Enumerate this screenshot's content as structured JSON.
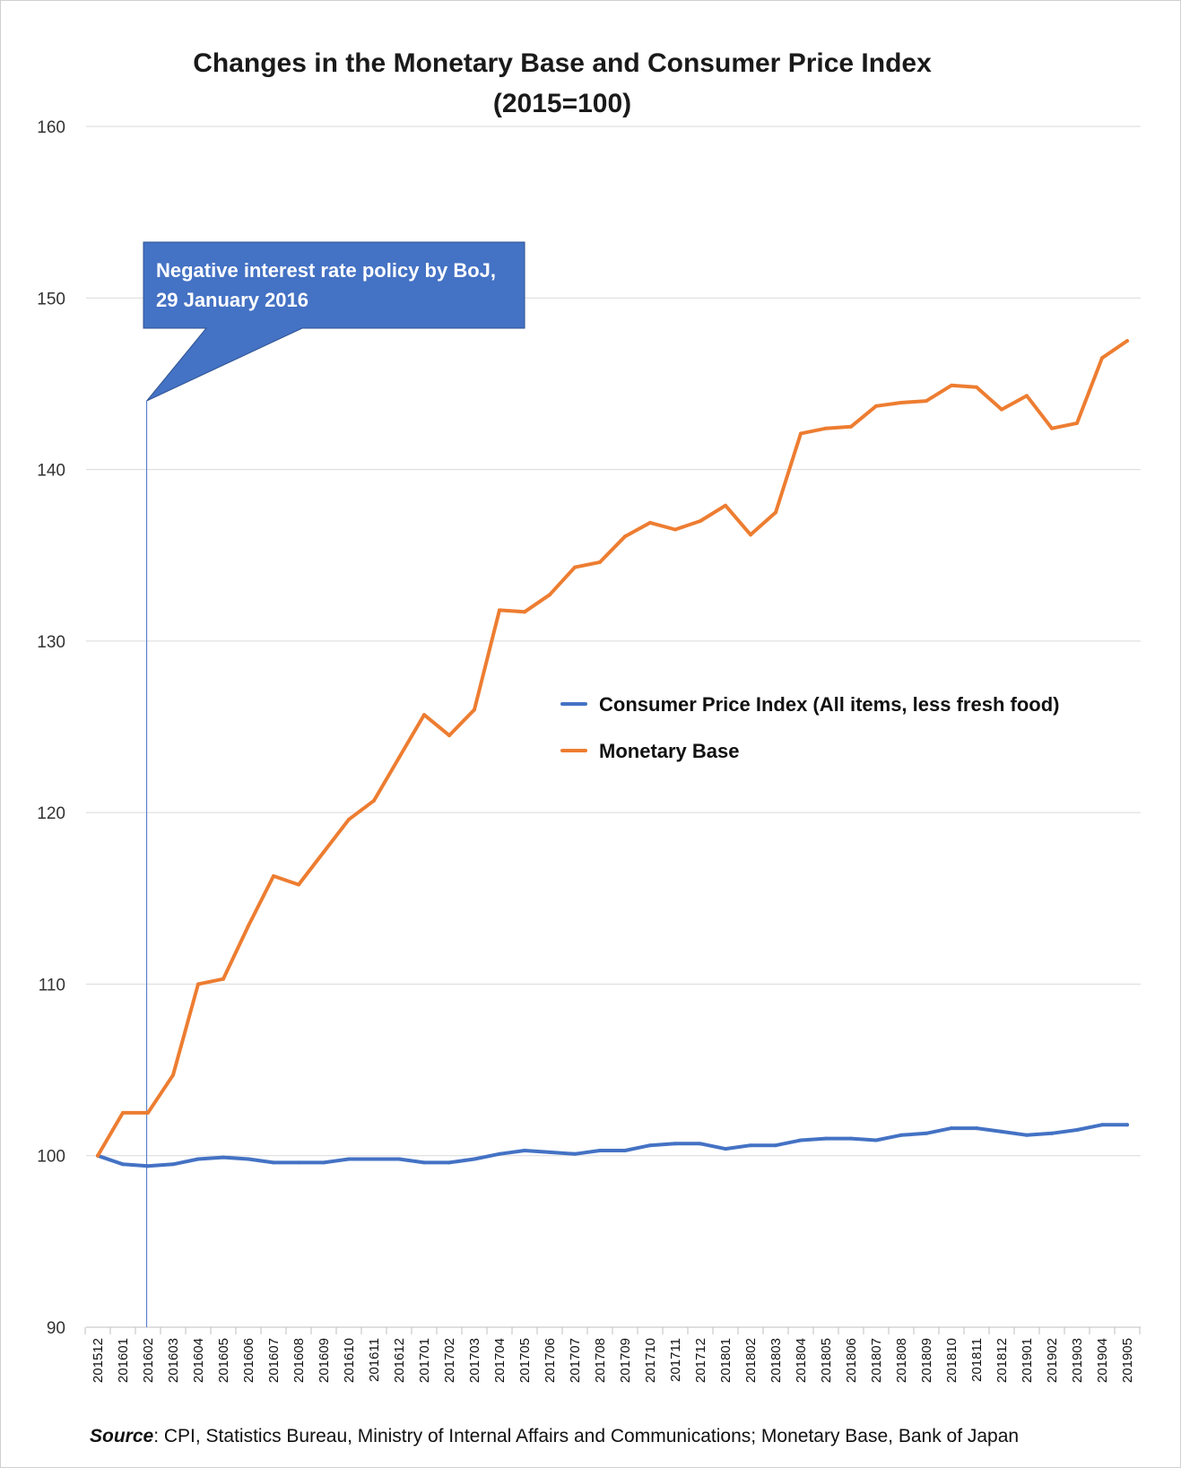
{
  "chart_data": {
    "type": "line",
    "title": "Changes in the Monetary Base and Consumer Price Index",
    "subtitle": "(2015=100)",
    "categories": [
      "201512",
      "201601",
      "201602",
      "201603",
      "201604",
      "201605",
      "201606",
      "201607",
      "201608",
      "201609",
      "201610",
      "201611",
      "201612",
      "201701",
      "201702",
      "201703",
      "201704",
      "201705",
      "201706",
      "201707",
      "201708",
      "201709",
      "201710",
      "201711",
      "201712",
      "201801",
      "201802",
      "201803",
      "201804",
      "201805",
      "201806",
      "201807",
      "201808",
      "201809",
      "201810",
      "201811",
      "201812",
      "201901",
      "201902",
      "201903",
      "201904",
      "201905"
    ],
    "ylim": [
      90,
      160
    ],
    "yticks": [
      90,
      100,
      110,
      120,
      130,
      140,
      150,
      160
    ],
    "grid": true,
    "legend_position": "center-right",
    "series": [
      {
        "name": "Consumer Price Index (All items, less fresh food)",
        "color": "#4472C4",
        "values": [
          100,
          99.5,
          99.4,
          99.5,
          99.8,
          99.9,
          99.8,
          99.6,
          99.6,
          99.6,
          99.8,
          99.8,
          99.8,
          99.6,
          99.6,
          99.8,
          100.1,
          100.3,
          100.2,
          100.1,
          100.3,
          100.3,
          100.6,
          100.7,
          100.7,
          100.4,
          100.6,
          100.6,
          100.9,
          101.0,
          101.0,
          100.9,
          101.2,
          101.3,
          101.6,
          101.6,
          101.4,
          101.2,
          101.3,
          101.5,
          101.8,
          101.8
        ]
      },
      {
        "name": "Monetary Base",
        "color": "#ED7D31",
        "values": [
          100,
          102.5,
          102.5,
          104.7,
          110.0,
          110.3,
          113.4,
          116.3,
          115.8,
          117.7,
          119.6,
          120.7,
          123.2,
          125.7,
          124.5,
          126.0,
          131.8,
          131.7,
          132.7,
          134.3,
          134.6,
          136.1,
          136.9,
          136.5,
          137.0,
          137.9,
          136.2,
          137.5,
          142.1,
          142.4,
          142.5,
          143.7,
          143.9,
          144.0,
          144.9,
          144.8,
          143.5,
          144.3,
          142.4,
          142.7,
          146.5,
          147.5
        ]
      }
    ],
    "annotations": [
      {
        "text_lines": [
          "Negative interest rate policy by BoJ,",
          "29 January 2016"
        ],
        "anchor_category": "201601",
        "anchor_offset": 0.95,
        "anchor_value": 144,
        "box_color": "#4472C4",
        "text_color": "#FFFFFF"
      }
    ]
  },
  "source": {
    "label": "Source",
    "separator": ": ",
    "text": "CPI, Statistics Bureau, Ministry of Internal Affairs and Communications; Monetary Base, Bank of Japan"
  }
}
